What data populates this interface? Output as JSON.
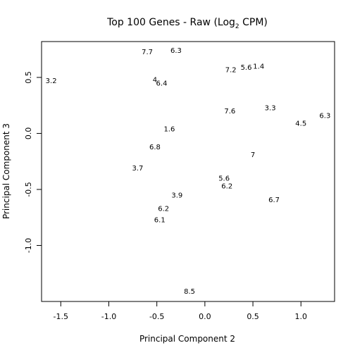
{
  "chart_data": {
    "type": "scatter",
    "title_main": "Top 100 Genes - Raw (Log",
    "title_sub": "2",
    "title_tail": " CPM)",
    "xlabel": "Principal Component 2",
    "ylabel": "Principal Component 3",
    "xlim": [
      -1.7,
      1.35
    ],
    "ylim": [
      -1.5,
      0.82
    ],
    "x_ticks": [
      -1.5,
      -1.0,
      -0.5,
      0.0,
      0.5,
      1.0
    ],
    "x_tick_labels": [
      "-1.5",
      "-1.0",
      "-0.5",
      "0.0",
      "0.5",
      "1.0"
    ],
    "y_ticks": [
      -1.0,
      -0.5,
      0.0,
      0.5
    ],
    "y_tick_labels": [
      "-1.0",
      "-0.5",
      "0.0",
      "0.5"
    ],
    "grid": false,
    "points": [
      {
        "x": -1.6,
        "y": 0.47,
        "label": "3.2"
      },
      {
        "x": -0.6,
        "y": 0.73,
        "label": "7.7"
      },
      {
        "x": -0.3,
        "y": 0.74,
        "label": "6.3"
      },
      {
        "x": -0.52,
        "y": 0.48,
        "label": "4"
      },
      {
        "x": -0.45,
        "y": 0.45,
        "label": "6.4"
      },
      {
        "x": 0.27,
        "y": 0.57,
        "label": "7.2"
      },
      {
        "x": 0.43,
        "y": 0.59,
        "label": "5.6"
      },
      {
        "x": 0.56,
        "y": 0.6,
        "label": "1.4"
      },
      {
        "x": 0.26,
        "y": 0.2,
        "label": "7.6"
      },
      {
        "x": 0.68,
        "y": 0.23,
        "label": "3.3"
      },
      {
        "x": 1.25,
        "y": 0.16,
        "label": "6.3"
      },
      {
        "x": 1.0,
        "y": 0.09,
        "label": "4.5"
      },
      {
        "x": -0.37,
        "y": 0.04,
        "label": "1.6"
      },
      {
        "x": -0.52,
        "y": -0.12,
        "label": "6.8"
      },
      {
        "x": 0.5,
        "y": -0.19,
        "label": "7"
      },
      {
        "x": -0.7,
        "y": -0.31,
        "label": "3.7"
      },
      {
        "x": 0.2,
        "y": -0.4,
        "label": "5.6"
      },
      {
        "x": 0.23,
        "y": -0.47,
        "label": "6.2"
      },
      {
        "x": -0.29,
        "y": -0.55,
        "label": "3.9"
      },
      {
        "x": 0.72,
        "y": -0.59,
        "label": "6.7"
      },
      {
        "x": -0.43,
        "y": -0.67,
        "label": "6.2"
      },
      {
        "x": -0.47,
        "y": -0.77,
        "label": "6.1"
      },
      {
        "x": -0.16,
        "y": -1.41,
        "label": "8.5"
      }
    ]
  }
}
